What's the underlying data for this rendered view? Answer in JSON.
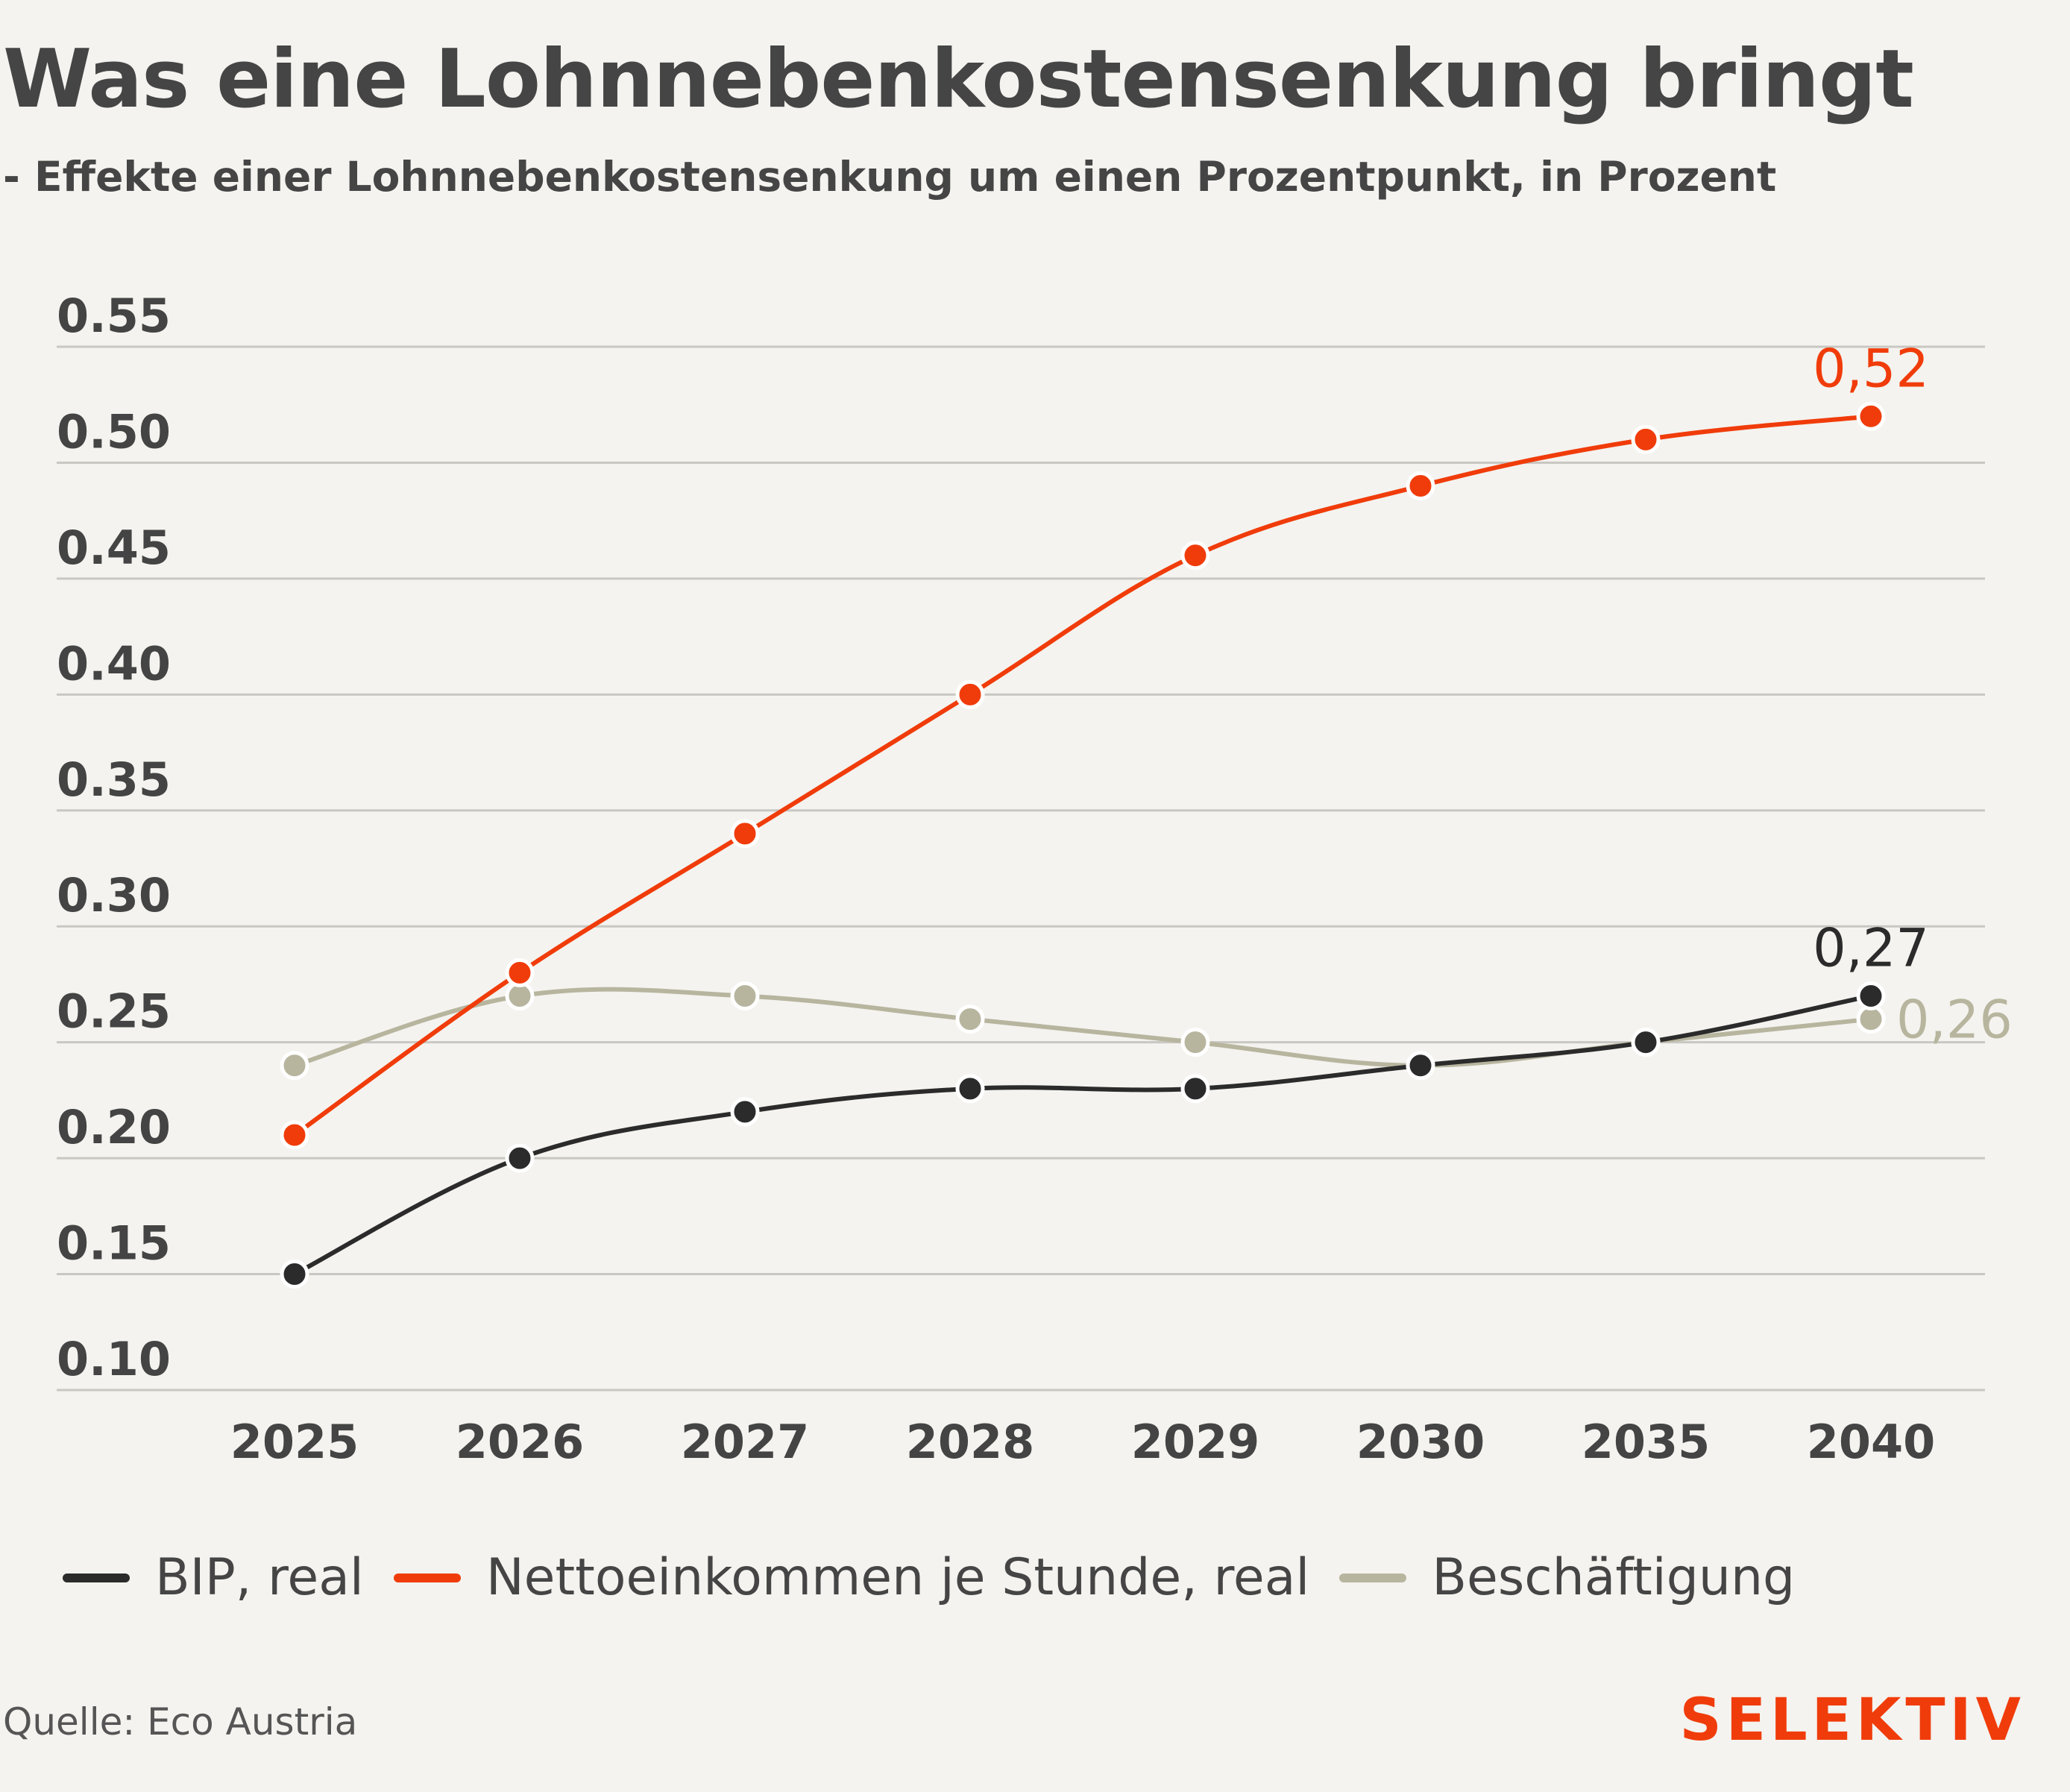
{
  "header": {
    "title": "Was eine Lohnnebenkostensenkung bringt",
    "subtitle": "- Effekte einer Lohnnebenkostensenkung um einen Prozentpunkt, in Prozent"
  },
  "footer": {
    "source": "Quelle: Eco Austria",
    "brand": "SELEKTIV"
  },
  "colors": {
    "background": "#f4f3ef",
    "gridline": "#c9c7c2",
    "text": "#444444"
  },
  "chart_data": {
    "type": "line",
    "x": [
      "2025",
      "2026",
      "2027",
      "2028",
      "2029",
      "2030",
      "2035",
      "2040"
    ],
    "ylim": [
      0.1,
      0.55
    ],
    "yticks": [
      "0.10",
      "0.15",
      "0.20",
      "0.25",
      "0.30",
      "0.35",
      "0.40",
      "0.45",
      "0.50",
      "0.55"
    ],
    "grid": true,
    "legend_position": "bottom",
    "series": [
      {
        "name": "BIP, real",
        "color": "#2b2b2b",
        "values": [
          0.15,
          0.2,
          0.22,
          0.23,
          0.23,
          0.24,
          0.25,
          0.27
        ],
        "end_label": "0,27"
      },
      {
        "name": "Nettoeinkommen je Stunde, real",
        "color": "#f03c0a",
        "values": [
          0.21,
          0.28,
          0.34,
          0.4,
          0.46,
          0.49,
          0.51,
          0.52
        ],
        "end_label": "0,52"
      },
      {
        "name": "Beschäftigung",
        "color": "#b8b59f",
        "values": [
          0.24,
          0.27,
          0.27,
          0.26,
          0.25,
          0.24,
          0.25,
          0.26
        ],
        "end_label": "0,26"
      }
    ]
  }
}
